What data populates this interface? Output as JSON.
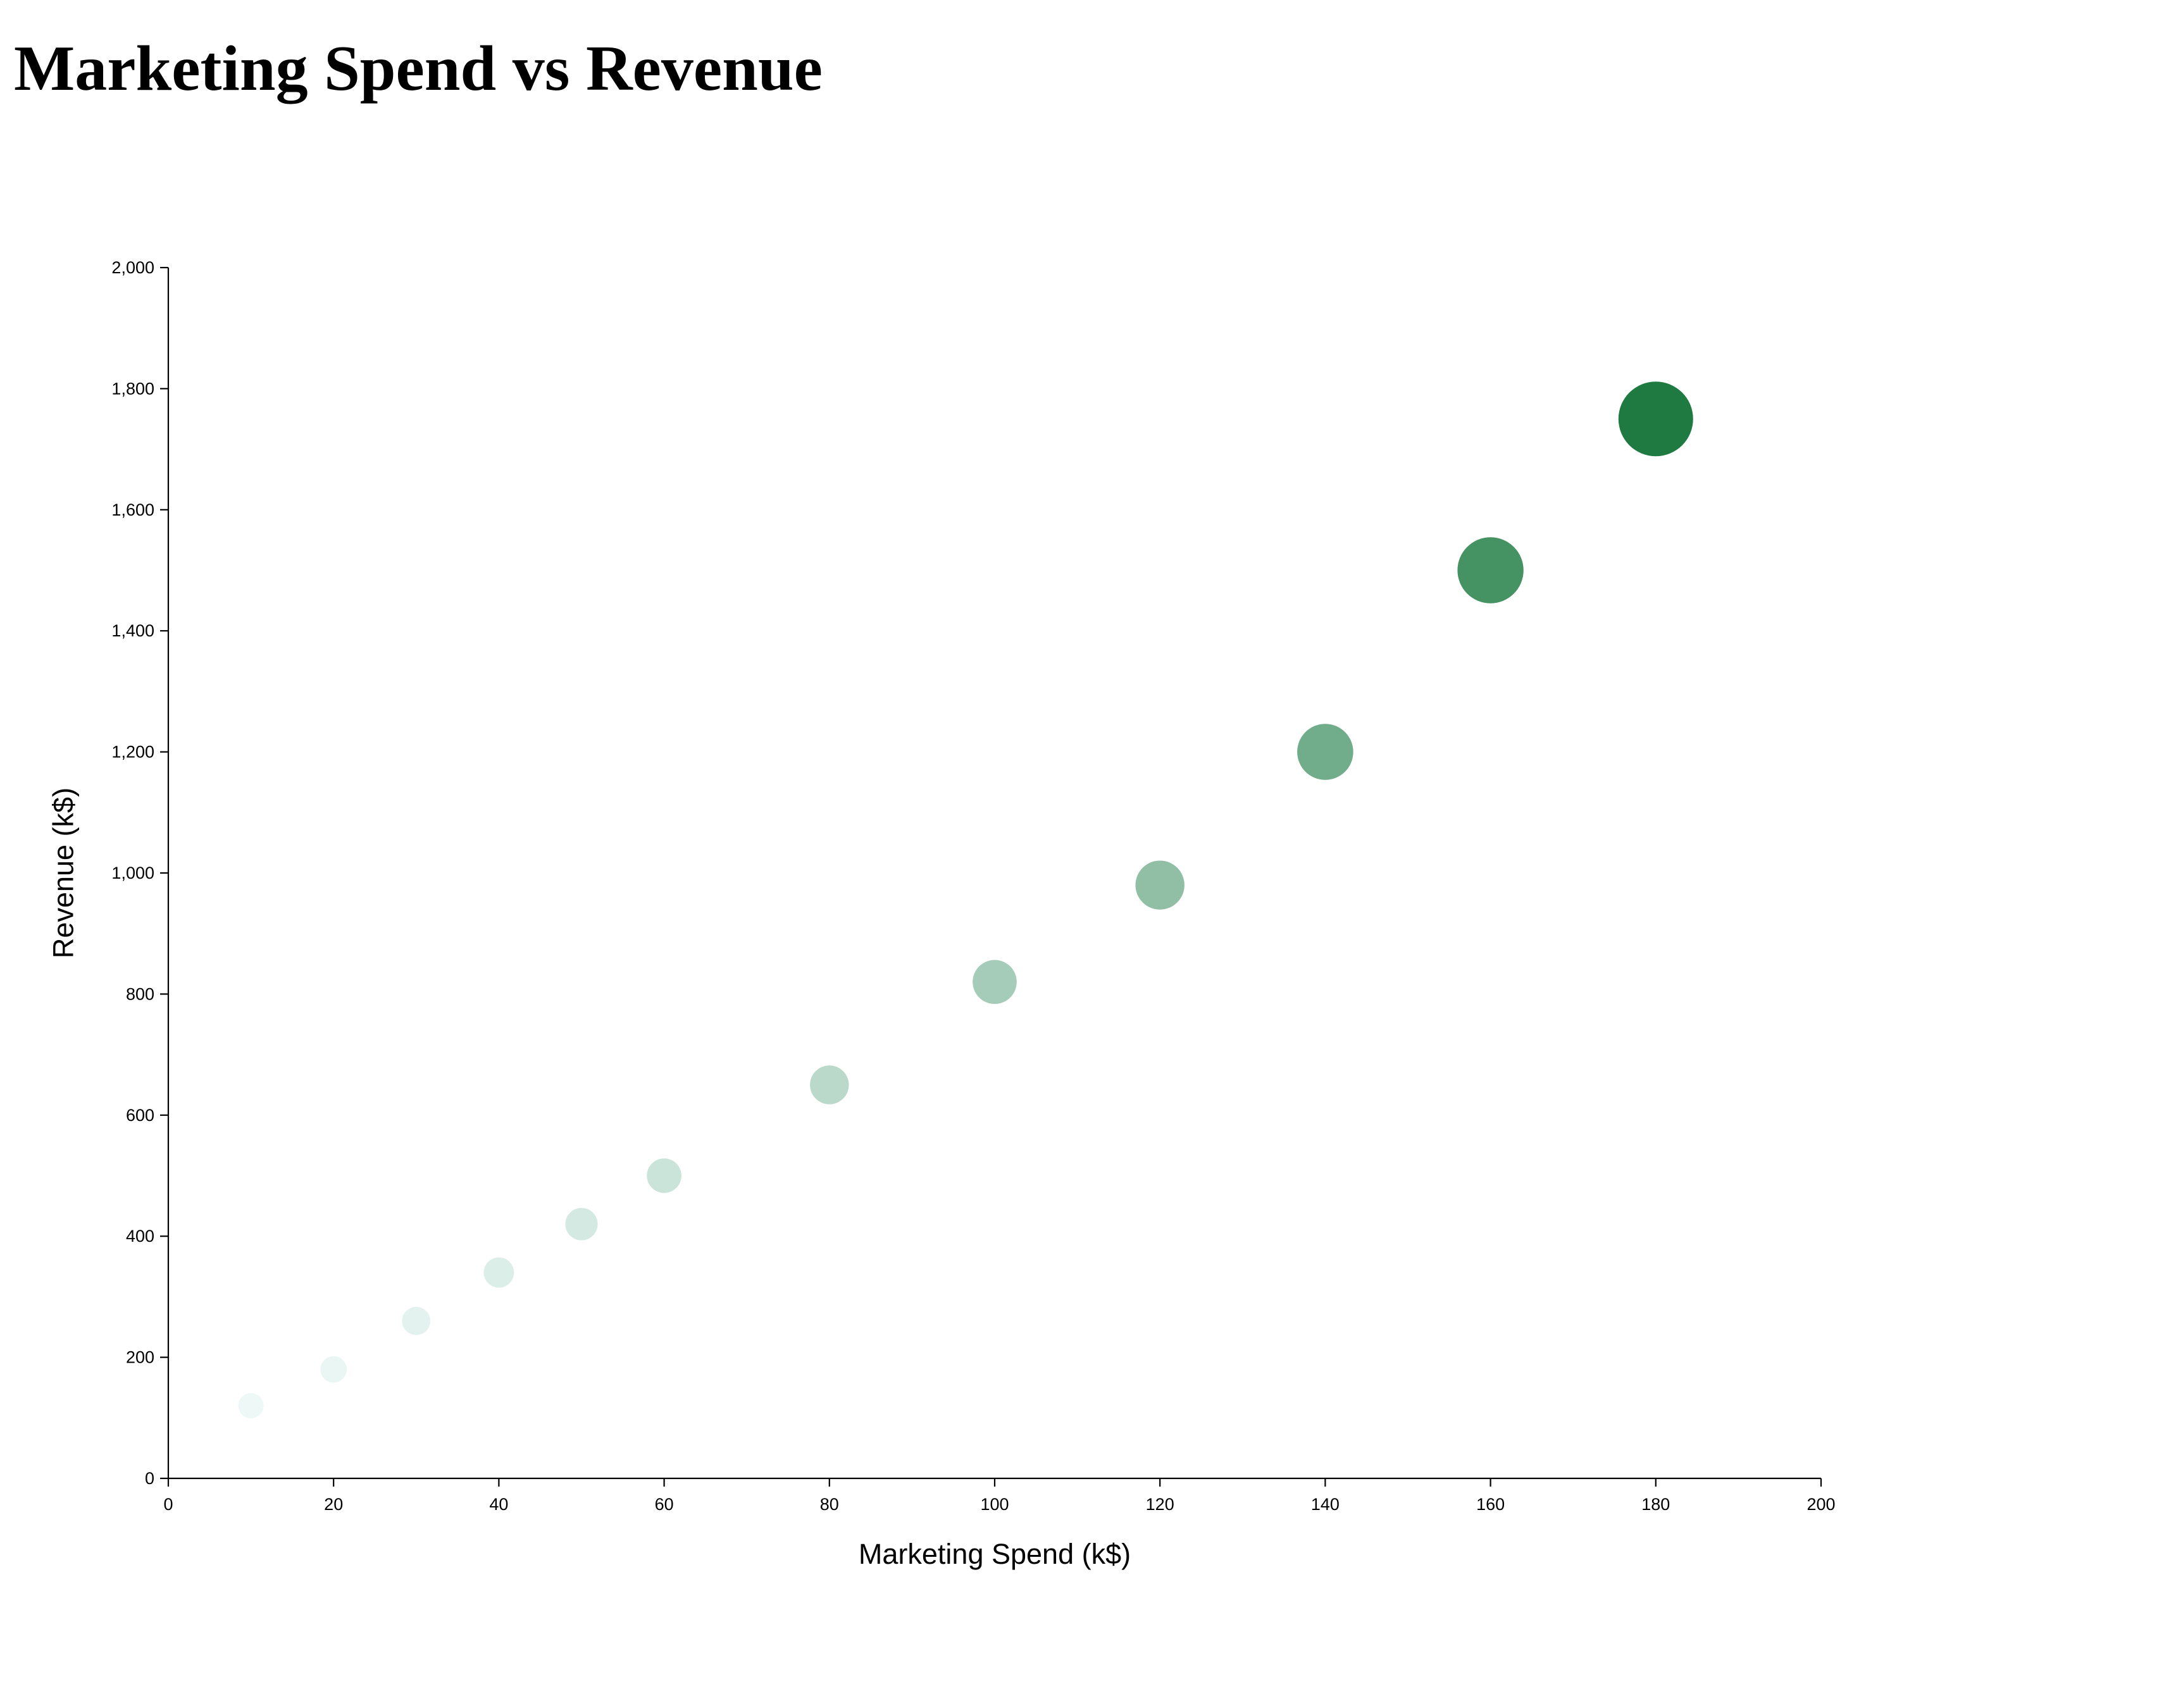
{
  "title": "Marketing Spend vs Revenue",
  "chart_data": {
    "type": "scatter",
    "title": "Marketing Spend vs Revenue",
    "xlabel": "Marketing Spend (k$)",
    "ylabel": "Revenue (k$)",
    "xlim": [
      0,
      200
    ],
    "ylim": [
      0,
      2000
    ],
    "x_ticks": [
      0,
      20,
      40,
      60,
      80,
      100,
      120,
      140,
      160,
      180,
      200
    ],
    "y_ticks": [
      0,
      200,
      400,
      600,
      800,
      1000,
      1200,
      1400,
      1600,
      1800,
      2000
    ],
    "x_tick_labels": [
      "0",
      "20",
      "40",
      "60",
      "80",
      "100",
      "120",
      "140",
      "160",
      "180",
      "200"
    ],
    "y_tick_labels": [
      "0",
      "200",
      "400",
      "600",
      "800",
      "1,000",
      "1,200",
      "1,400",
      "1,600",
      "1,800",
      "2,000"
    ],
    "grid": false,
    "legend": "none",
    "encoding": "point size and color intensity increase with revenue",
    "color_scale": [
      "#edf8f7",
      "#1e7a41"
    ],
    "points": [
      {
        "x": 10,
        "y": 120
      },
      {
        "x": 20,
        "y": 180
      },
      {
        "x": 30,
        "y": 260
      },
      {
        "x": 40,
        "y": 340
      },
      {
        "x": 50,
        "y": 420
      },
      {
        "x": 60,
        "y": 500
      },
      {
        "x": 80,
        "y": 650
      },
      {
        "x": 100,
        "y": 820
      },
      {
        "x": 120,
        "y": 980
      },
      {
        "x": 140,
        "y": 1200
      },
      {
        "x": 160,
        "y": 1500
      },
      {
        "x": 180,
        "y": 1750
      }
    ]
  }
}
